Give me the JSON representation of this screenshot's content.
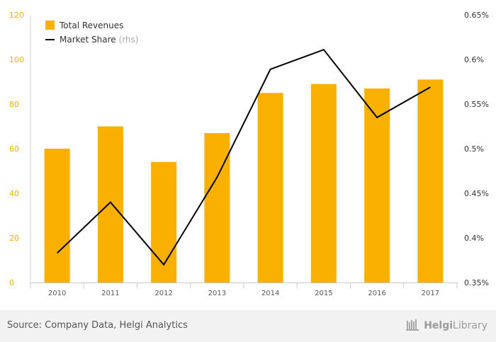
{
  "chart_data": {
    "type": "bar",
    "categories": [
      "2010",
      "2011",
      "2012",
      "2013",
      "2014",
      "2015",
      "2016",
      "2017"
    ],
    "series": [
      {
        "name": "Total Revenues",
        "type": "bar",
        "axis": "left",
        "values": [
          60,
          70,
          54,
          67,
          85,
          89,
          87,
          91
        ]
      },
      {
        "name": "Market Share",
        "type": "line",
        "axis": "right",
        "values": [
          0.383,
          0.44,
          0.37,
          0.468,
          0.589,
          0.611,
          0.535,
          0.569
        ]
      }
    ],
    "y_left": {
      "min": 0,
      "max": 120,
      "ticks": [
        0,
        20,
        40,
        60,
        80,
        100,
        120
      ]
    },
    "y_right": {
      "min": 0.35,
      "max": 0.65,
      "ticks": [
        0.35,
        0.4,
        0.45,
        0.5,
        0.55,
        0.6,
        0.65
      ],
      "tick_labels": [
        "0.35%",
        "0.4%",
        "0.45%",
        "0.5%",
        "0.55%",
        "0.6%",
        "0.65%"
      ]
    },
    "legend": {
      "placement": "top-left",
      "items": [
        {
          "label": "Total Revenues",
          "suffix": ""
        },
        {
          "label": "Market Share",
          "suffix": "(rhs)"
        }
      ]
    },
    "colors": {
      "bars": "#f9b000",
      "line": "#000000",
      "left_ticks": "#f5b000"
    },
    "title": "",
    "xlabel": "",
    "ylabel": "",
    "grid": false
  },
  "footer": {
    "source": "Source: Company Data, Helgi Analytics",
    "brand_part1": "Helgi",
    "brand_part2": "Library"
  }
}
